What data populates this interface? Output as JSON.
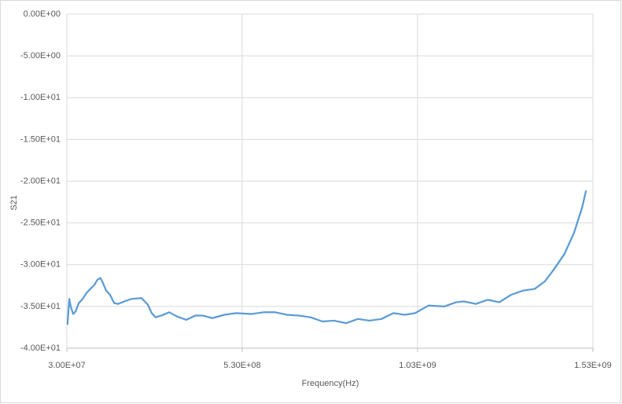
{
  "chart_data": {
    "type": "line",
    "x_label": "Frequency(Hz)",
    "y_label": "S21",
    "xlim": [
      30000000,
      1530000000
    ],
    "xticks": [
      {
        "value": 30000000,
        "label": "3.00E+07"
      },
      {
        "value": 530000000,
        "label": "5.30E+08"
      },
      {
        "value": 1030000000,
        "label": "1.03E+09"
      },
      {
        "value": 1530000000,
        "label": "1.53E+09"
      }
    ],
    "ylim": [
      -40,
      0
    ],
    "yticks": [
      {
        "value": 0,
        "label": "0.00E+00"
      },
      {
        "value": -5,
        "label": "-5.00E+00"
      },
      {
        "value": -10,
        "label": "-1.00E+01"
      },
      {
        "value": -15,
        "label": "-1.50E+01"
      },
      {
        "value": -20,
        "label": "-2.00E+01"
      },
      {
        "value": -25,
        "label": "-2.50E+01"
      },
      {
        "value": -30,
        "label": "-3.00E+01"
      },
      {
        "value": -35,
        "label": "-3.50E+01"
      },
      {
        "value": -40,
        "label": "-4.00E+01"
      }
    ],
    "grid": true,
    "x": [
      32000000,
      37000000,
      41000000,
      48000000,
      55000000,
      64000000,
      75000000,
      86000000,
      97000000,
      109000000,
      117000000,
      126000000,
      133000000,
      142000000,
      153000000,
      165000000,
      176000000,
      194000000,
      214000000,
      243000000,
      261000000,
      272000000,
      283000000,
      299000000,
      322000000,
      344000000,
      371000000,
      396000000,
      418000000,
      445000000,
      479000000,
      512000000,
      557000000,
      591000000,
      624000000,
      658000000,
      692000000,
      725000000,
      759000000,
      792000000,
      826000000,
      860000000,
      893000000,
      927000000,
      961000000,
      994000000,
      1023000000,
      1061000000,
      1106000000,
      1140000000,
      1162000000,
      1196000000,
      1230000000,
      1263000000,
      1297000000,
      1331000000,
      1364000000,
      1393000000,
      1420000000,
      1449000000,
      1476000000,
      1499000000,
      1510000000
    ],
    "series": [
      {
        "color": "#5b9bd5",
        "values": [
          -37.1,
          -34.1,
          -35.0,
          -35.9,
          -35.6,
          -34.6,
          -34.1,
          -33.4,
          -32.9,
          -32.4,
          -31.8,
          -31.6,
          -32.2,
          -33.1,
          -33.6,
          -34.6,
          -34.7,
          -34.4,
          -34.1,
          -34.0,
          -34.8,
          -35.8,
          -36.3,
          -36.1,
          -35.7,
          -36.2,
          -36.6,
          -36.1,
          -36.1,
          -36.4,
          -36.0,
          -35.8,
          -35.9,
          -35.7,
          -35.7,
          -36.0,
          -36.1,
          -36.3,
          -36.8,
          -36.7,
          -37.0,
          -36.5,
          -36.7,
          -36.5,
          -35.8,
          -36.0,
          -35.8,
          -34.9,
          -35.0,
          -34.5,
          -34.4,
          -34.7,
          -34.2,
          -34.5,
          -33.6,
          -33.1,
          -32.9,
          -32.0,
          -30.5,
          -28.7,
          -26.2,
          -23.2,
          -21.2
        ]
      }
    ]
  }
}
